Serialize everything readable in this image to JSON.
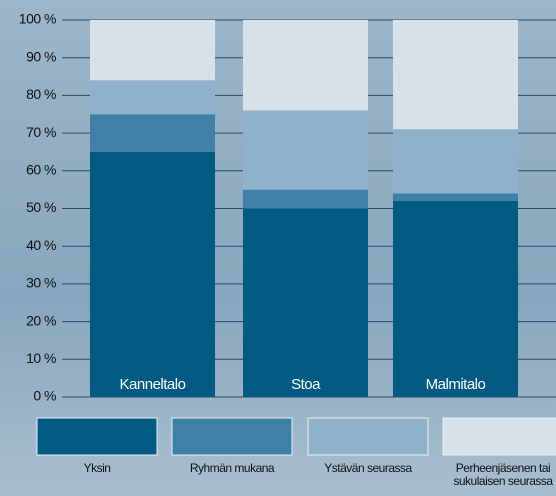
{
  "chart_data": {
    "type": "bar",
    "stacked": true,
    "categories": [
      "Kanneltalo",
      "Stoa",
      "Malmitalo"
    ],
    "series": [
      {
        "name": "Yksin",
        "color": "#005a82",
        "values": [
          65,
          50,
          52
        ]
      },
      {
        "name": "Ryhmän mukana",
        "color": "#3f80a6",
        "values": [
          10,
          5,
          2
        ]
      },
      {
        "name": "Ystävän seurassa",
        "color": "#8fb2ca",
        "values": [
          9,
          21,
          17
        ]
      },
      {
        "name": "Perheenjäsenen tai sukulaisen seurassa",
        "color": "#d6e1ea",
        "values": [
          16,
          24,
          29
        ]
      }
    ],
    "ylim": [
      0,
      100
    ],
    "yticks": [
      {
        "value": 0,
        "label": "0 %"
      },
      {
        "value": 10,
        "label": "10 %"
      },
      {
        "value": 20,
        "label": "20 %"
      },
      {
        "value": 30,
        "label": "30 %"
      },
      {
        "value": 40,
        "label": "40 %"
      },
      {
        "value": 50,
        "label": "50 %"
      },
      {
        "value": 60,
        "label": "60 %"
      },
      {
        "value": 70,
        "label": "70 %"
      },
      {
        "value": 80,
        "label": "80 %"
      },
      {
        "value": 90,
        "label": "90 %"
      },
      {
        "value": 100,
        "label": "100 %"
      }
    ],
    "grid": true
  }
}
